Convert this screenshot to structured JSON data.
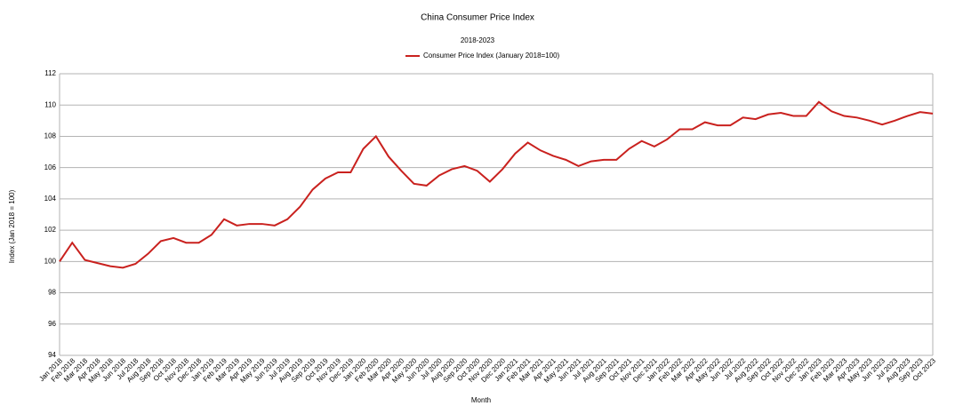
{
  "chart_data": {
    "type": "line",
    "title": "China Consumer Price Index",
    "subtitle": "2018-2023",
    "x_label": "Month",
    "y_label": "Index (Jan 2018 = 100)",
    "categories": [
      "Jan 2018",
      "Feb 2018",
      "Mar 2018",
      "Apr 2018",
      "May 2018",
      "Jun 2018",
      "Jul 2018",
      "Aug 2018",
      "Sep 2018",
      "Oct 2018",
      "Nov 2018",
      "Dec 2018",
      "Jan 2019",
      "Feb 2019",
      "Mar 2019",
      "Apr 2019",
      "May 2019",
      "Jun 2019",
      "Jul 2019",
      "Aug 2019",
      "Sep 2019",
      "Oct 2019",
      "Nov 2019",
      "Dec 2019",
      "Jan 2020",
      "Feb 2020",
      "Mar 2020",
      "Apr 2020",
      "May 2020",
      "Jun 2020",
      "Jul 2020",
      "Aug 2020",
      "Sep 2020",
      "Oct 2020",
      "Nov 2020",
      "Dec 2020",
      "Jan 2021",
      "Feb 2021",
      "Mar 2021",
      "Apr 2021",
      "May 2021",
      "Jun 2021",
      "Jul 2021",
      "Aug 2021",
      "Sep 2021",
      "Oct 2021",
      "Nov 2021",
      "Dec 2021",
      "Jan 2022",
      "Feb 2022",
      "Mar 2022",
      "Apr 2022",
      "May 2022",
      "Jun 2022",
      "Jul 2022",
      "Aug 2022",
      "Sep 2022",
      "Oct 2022",
      "Nov 2022",
      "Dec 2022",
      "Jan 2023",
      "Feb 2023",
      "Mar 2023",
      "Apr 2023",
      "May 2023",
      "Jun 2023",
      "Jul 2023",
      "Aug 2023",
      "Sep 2023",
      "Oct 2023"
    ],
    "series": [
      {
        "name": "Consumer Price Index (January 2018=100)",
        "color": "#c9211e",
        "values": [
          100.0,
          101.2,
          100.1,
          99.9,
          99.7,
          99.6,
          99.85,
          100.5,
          101.3,
          101.5,
          101.2,
          101.2,
          101.7,
          102.7,
          102.3,
          102.4,
          102.4,
          102.3,
          102.7,
          103.5,
          104.6,
          105.3,
          105.7,
          105.7,
          107.2,
          108.0,
          106.7,
          105.8,
          104.97,
          104.85,
          105.5,
          105.9,
          106.1,
          105.8,
          105.1,
          105.9,
          106.9,
          107.6,
          107.1,
          106.75,
          106.5,
          106.1,
          106.4,
          106.5,
          106.5,
          107.2,
          107.7,
          107.35,
          107.8,
          108.45,
          108.45,
          108.9,
          108.7,
          108.7,
          109.2,
          109.1,
          109.4,
          109.5,
          109.3,
          109.3,
          110.2,
          109.6,
          109.3,
          109.2,
          109.0,
          108.75,
          109.0,
          109.3,
          109.55,
          109.45
        ]
      }
    ],
    "ylim": [
      94,
      112
    ],
    "yticks": [
      94,
      96,
      98,
      100,
      102,
      104,
      106,
      108,
      110,
      112
    ],
    "grid": true,
    "legend": "top"
  }
}
